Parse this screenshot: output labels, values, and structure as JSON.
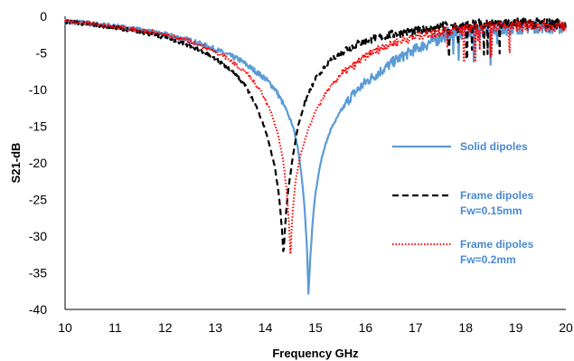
{
  "chart_data": {
    "type": "line",
    "title": "",
    "xlabel": "Frequency GHz",
    "ylabel": "S21-dB",
    "xlim": [
      10,
      20
    ],
    "ylim": [
      -40,
      0
    ],
    "x_ticks": [
      "10",
      "11",
      "12",
      "13",
      "14",
      "15",
      "16",
      "17",
      "18",
      "19",
      "20"
    ],
    "y_ticks": [
      "0",
      "-5",
      "-10",
      "-15",
      "-20",
      "-25",
      "-30",
      "-35",
      "-40"
    ],
    "grid": false,
    "legend_position": "right",
    "series": [
      {
        "name": "Solid dipoles",
        "color": "#5b9bd5",
        "style": "solid",
        "points": [
          [
            10.0,
            -0.7
          ],
          [
            10.5,
            -1.0
          ],
          [
            11.0,
            -1.4
          ],
          [
            11.5,
            -1.9
          ],
          [
            12.0,
            -2.5
          ],
          [
            12.5,
            -3.3
          ],
          [
            13.0,
            -4.5
          ],
          [
            13.5,
            -6.0
          ],
          [
            13.8,
            -7.5
          ],
          [
            14.0,
            -8.5
          ],
          [
            14.2,
            -10.0
          ],
          [
            14.4,
            -12.5
          ],
          [
            14.55,
            -15.0
          ],
          [
            14.65,
            -18.0
          ],
          [
            14.72,
            -21.5
          ],
          [
            14.78,
            -26.0
          ],
          [
            14.83,
            -31.5
          ],
          [
            14.86,
            -38.0
          ],
          [
            14.9,
            -32.5
          ],
          [
            14.95,
            -27.5
          ],
          [
            15.0,
            -24.0
          ],
          [
            15.1,
            -20.0
          ],
          [
            15.2,
            -17.5
          ],
          [
            15.3,
            -15.5
          ],
          [
            15.5,
            -13.0
          ],
          [
            15.7,
            -11.0
          ],
          [
            16.0,
            -9.0
          ],
          [
            16.3,
            -7.5
          ],
          [
            16.6,
            -6.0
          ],
          [
            17.0,
            -4.5
          ],
          [
            17.3,
            -3.5
          ],
          [
            17.6,
            -2.5
          ],
          [
            18.0,
            -2.2
          ],
          [
            18.5,
            -1.8
          ],
          [
            19.0,
            -1.5
          ],
          [
            19.5,
            -1.3
          ],
          [
            20.0,
            -1.5
          ]
        ]
      },
      {
        "name": "Frame dipoles Fw=0.15mm",
        "color": "#000000",
        "style": "dashed",
        "points": [
          [
            10.0,
            -0.7
          ],
          [
            10.5,
            -1.1
          ],
          [
            11.0,
            -1.5
          ],
          [
            11.5,
            -2.1
          ],
          [
            12.0,
            -2.9
          ],
          [
            12.5,
            -4.0
          ],
          [
            13.0,
            -5.8
          ],
          [
            13.3,
            -7.2
          ],
          [
            13.6,
            -9.5
          ],
          [
            13.8,
            -12.0
          ],
          [
            14.0,
            -15.5
          ],
          [
            14.1,
            -18.0
          ],
          [
            14.2,
            -21.0
          ],
          [
            14.28,
            -25.0
          ],
          [
            14.33,
            -29.0
          ],
          [
            14.36,
            -32.5
          ],
          [
            14.4,
            -28.0
          ],
          [
            14.45,
            -24.0
          ],
          [
            14.55,
            -19.0
          ],
          [
            14.65,
            -15.0
          ],
          [
            14.8,
            -11.5
          ],
          [
            15.0,
            -8.5
          ],
          [
            15.3,
            -6.0
          ],
          [
            15.6,
            -4.5
          ],
          [
            16.0,
            -3.3
          ],
          [
            16.5,
            -2.5
          ],
          [
            17.0,
            -2.0
          ],
          [
            17.5,
            -1.5
          ],
          [
            18.0,
            -1.3
          ],
          [
            18.5,
            -1.0
          ],
          [
            19.0,
            -0.9
          ],
          [
            19.5,
            -1.0
          ],
          [
            20.0,
            -1.0
          ]
        ]
      },
      {
        "name": "Frame dipoles Fw=0.2mm",
        "color": "#ff0000",
        "style": "dotted",
        "points": [
          [
            10.0,
            -0.7
          ],
          [
            10.5,
            -1.0
          ],
          [
            11.0,
            -1.4
          ],
          [
            11.5,
            -1.9
          ],
          [
            12.0,
            -2.5
          ],
          [
            12.5,
            -3.4
          ],
          [
            13.0,
            -4.8
          ],
          [
            13.3,
            -6.0
          ],
          [
            13.6,
            -7.6
          ],
          [
            13.9,
            -10.0
          ],
          [
            14.1,
            -12.8
          ],
          [
            14.25,
            -16.0
          ],
          [
            14.35,
            -19.5
          ],
          [
            14.42,
            -23.5
          ],
          [
            14.47,
            -28.0
          ],
          [
            14.5,
            -32.5
          ],
          [
            14.54,
            -27.0
          ],
          [
            14.6,
            -22.5
          ],
          [
            14.7,
            -19.0
          ],
          [
            14.85,
            -15.5
          ],
          [
            15.0,
            -13.0
          ],
          [
            15.2,
            -10.5
          ],
          [
            15.5,
            -8.0
          ],
          [
            15.8,
            -6.5
          ],
          [
            16.1,
            -5.0
          ],
          [
            16.5,
            -3.8
          ],
          [
            17.0,
            -2.8
          ],
          [
            17.5,
            -2.0
          ],
          [
            18.0,
            -1.8
          ],
          [
            18.5,
            -1.5
          ],
          [
            19.0,
            -1.3
          ],
          [
            19.5,
            -1.3
          ],
          [
            20.0,
            -1.4
          ]
        ]
      }
    ],
    "legend": [
      {
        "lines": [
          "Solid dipoles"
        ],
        "color": "#5b9bd5",
        "style": "solid"
      },
      {
        "lines": [
          "Frame dipoles",
          "Fw=0.15mm"
        ],
        "color": "#000000",
        "style": "dashed"
      },
      {
        "lines": [
          "Frame dipoles",
          "Fw=0.2mm"
        ],
        "color": "#ff0000",
        "style": "dotted"
      }
    ]
  }
}
